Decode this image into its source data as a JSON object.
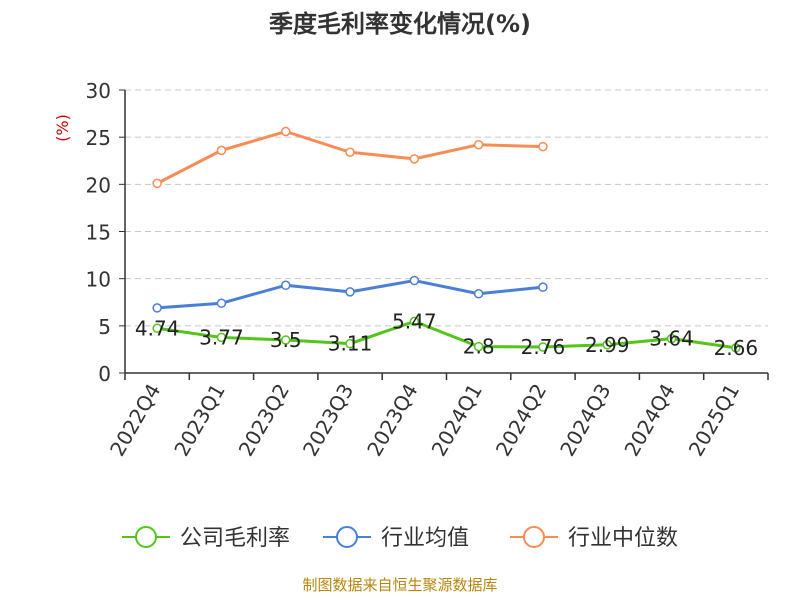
{
  "chart_data": {
    "type": "line",
    "title": "季度毛利率变化情况(%)",
    "ylabel": "(%)",
    "xlabel": "",
    "ylim": [
      0,
      30
    ],
    "yticks": [
      0,
      5,
      10,
      15,
      20,
      25,
      30
    ],
    "grid": true,
    "legend_position": "bottom",
    "categories": [
      "2022Q4",
      "2023Q1",
      "2023Q2",
      "2023Q3",
      "2023Q4",
      "2024Q1",
      "2024Q2",
      "2024Q3",
      "2024Q4",
      "2025Q1"
    ],
    "series": [
      {
        "name": "公司毛利率",
        "color": "#52c41a",
        "values": [
          4.74,
          3.77,
          3.5,
          3.11,
          5.47,
          2.8,
          2.76,
          2.99,
          3.64,
          2.66
        ],
        "value_labels": [
          "4.74",
          "3.77",
          "3.5",
          "3.11",
          "5.47",
          "2.8",
          "2.76",
          "2.99",
          "3.64",
          "2.66"
        ]
      },
      {
        "name": "行业均值",
        "color": "#4a7fd8",
        "values": [
          6.9,
          7.4,
          9.3,
          8.6,
          9.8,
          8.4,
          9.1,
          null,
          null,
          null
        ]
      },
      {
        "name": "行业中位数",
        "color": "#f78c55",
        "values": [
          20.1,
          23.6,
          25.6,
          23.4,
          22.7,
          24.2,
          24.0,
          null,
          null,
          null
        ]
      }
    ]
  },
  "source": "制图数据来自恒生聚源数据库"
}
